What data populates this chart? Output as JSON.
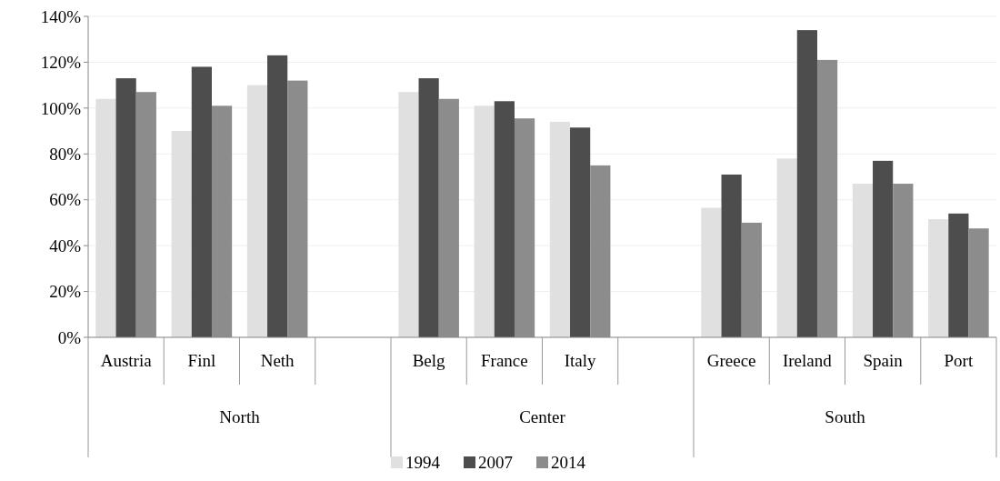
{
  "chart_data": {
    "type": "bar",
    "categories": [
      "Austria",
      "Finl",
      "Neth",
      null,
      "Belg",
      "France",
      "Italy",
      null,
      "Greece",
      "Ireland",
      "Spain",
      "Port"
    ],
    "series": [
      {
        "name": "1994",
        "color": "#e0e0e0",
        "values": [
          104,
          90,
          110,
          null,
          107,
          101,
          94,
          null,
          56.5,
          78,
          67,
          51.5
        ]
      },
      {
        "name": "2007",
        "color": "#4d4d4d",
        "values": [
          113,
          118,
          123,
          null,
          113,
          103,
          91.5,
          null,
          71,
          134,
          77,
          54
        ]
      },
      {
        "name": "2014",
        "color": "#8c8c8c",
        "values": [
          107,
          101,
          112,
          null,
          104,
          95.5,
          75,
          null,
          50,
          121,
          67,
          47.5
        ]
      }
    ],
    "ylim": [
      0,
      140
    ],
    "yticks": [
      {
        "value": 0,
        "label": "0%"
      },
      {
        "value": 20,
        "label": "20%"
      },
      {
        "value": 40,
        "label": "40%"
      },
      {
        "value": 60,
        "label": "60%"
      },
      {
        "value": 80,
        "label": "80%"
      },
      {
        "value": 100,
        "label": "100%"
      },
      {
        "value": 120,
        "label": "120%"
      },
      {
        "value": 140,
        "label": "140%"
      }
    ],
    "grid": "y",
    "legend": "bottom",
    "annotations": [
      "North",
      "Center",
      "South"
    ]
  }
}
